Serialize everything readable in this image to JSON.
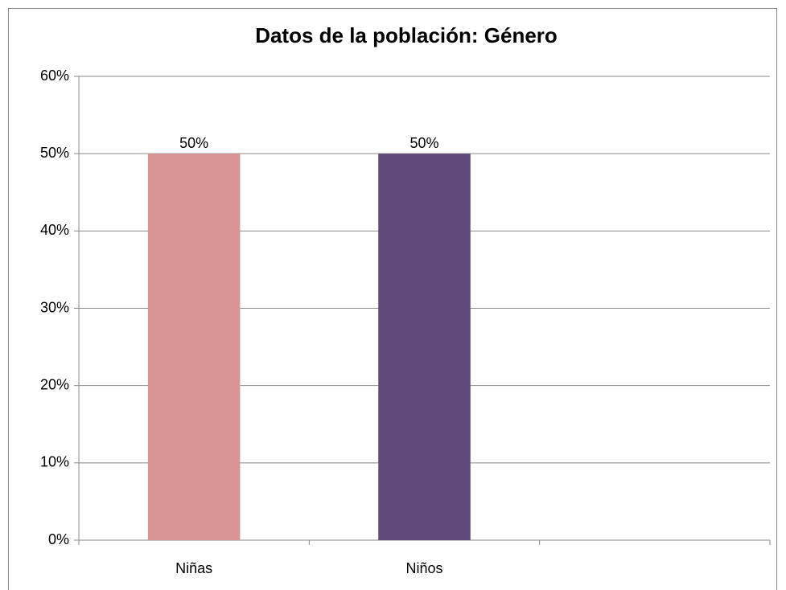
{
  "chart_data": {
    "type": "bar",
    "title": "Datos de la población: Género",
    "categories": [
      "Niñas",
      "Niños",
      null
    ],
    "values": [
      50,
      50,
      null
    ],
    "value_labels": [
      "50%",
      "50%",
      null
    ],
    "colors": [
      "#d99594",
      "#604a7b",
      null
    ],
    "ylim": [
      0,
      60
    ],
    "yticks": [
      {
        "value": 0,
        "label": "0%"
      },
      {
        "value": 10,
        "label": "10%"
      },
      {
        "value": 20,
        "label": "20%"
      },
      {
        "value": 30,
        "label": "30%"
      },
      {
        "value": 40,
        "label": "40%"
      },
      {
        "value": 50,
        "label": "50%"
      },
      {
        "value": 60,
        "label": "60%"
      }
    ],
    "grid": true
  }
}
